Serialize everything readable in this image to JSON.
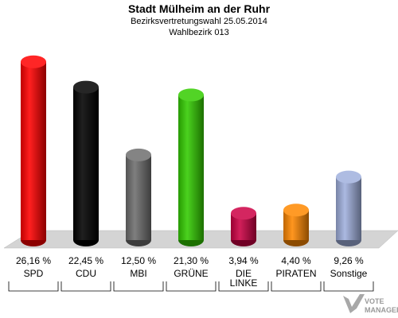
{
  "header": {
    "title": "Stadt Mülheim an der Ruhr",
    "subtitle1": "Bezirksvertretungswahl 25.05.2014",
    "subtitle2": "Wahlbezirk 013"
  },
  "logo": {
    "line1": "VOTE",
    "line2": "MANAGER"
  },
  "colors": {
    "background": "#ffffff",
    "floor": "#d4d4d4",
    "floor_edge": "#b8b8b8"
  },
  "chart_data": {
    "type": "bar",
    "categories": [
      "SPD",
      "CDU",
      "MBI",
      "GRÜNE",
      "DIE\nLINKE",
      "PIRATEN",
      "Sonstige"
    ],
    "values": [
      26.16,
      22.45,
      12.5,
      21.3,
      3.94,
      4.4,
      9.26
    ],
    "value_labels": [
      "26,16 %",
      "22,45 %",
      "12,50 %",
      "21,30 %",
      "3,94 %",
      "4,40 %",
      "9,26 %"
    ],
    "colors": [
      "#ff0000",
      "#000000",
      "#6e6e6e",
      "#33cc00",
      "#cc0044",
      "#ff8800",
      "#a0b0dd"
    ],
    "ylim": [
      0,
      28
    ]
  }
}
